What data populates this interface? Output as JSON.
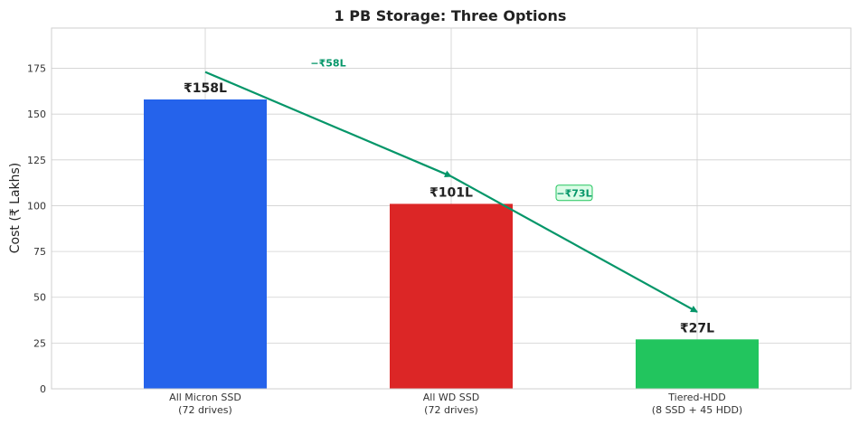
{
  "chart_data": {
    "type": "bar",
    "title": "1 PB Storage: Three Options",
    "ylabel": "Cost (₹ Lakhs)",
    "xlabel": "",
    "ylim": [
      0,
      197
    ],
    "yticks": [
      0,
      25,
      50,
      75,
      100,
      125,
      150,
      175
    ],
    "grid": true,
    "categories": [
      [
        "All Micron SSD",
        "(72 drives)"
      ],
      [
        "All WD SSD",
        "(72 drives)"
      ],
      [
        "Tiered-HDD",
        "(8 SSD + 45 HDD)"
      ]
    ],
    "values": [
      158,
      101,
      27
    ],
    "value_labels": [
      "₹158L",
      "₹101L",
      "₹27L"
    ],
    "colors": [
      "#2563eb",
      "#dc2626",
      "#22c55e"
    ],
    "arrow_color": "#059669",
    "annotations": [
      {
        "text": "−₹58L",
        "from": [
          0,
          173
        ],
        "to": [
          1,
          116
        ],
        "boxed": false,
        "label_at": [
          0.5,
          178
        ]
      },
      {
        "text": "−₹73L",
        "from": [
          1,
          116
        ],
        "to": [
          2,
          42
        ],
        "boxed": true,
        "label_at": [
          1.5,
          107
        ]
      }
    ]
  }
}
